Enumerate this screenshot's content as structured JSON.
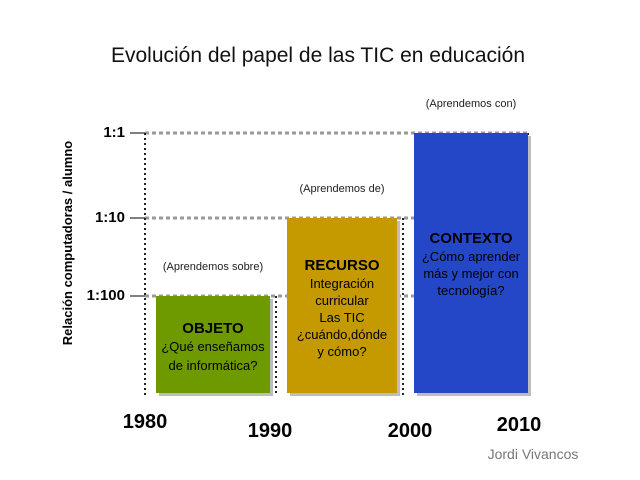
{
  "chart_data": {
    "type": "bar",
    "title": "Evolución del papel de las TIC en educación",
    "ylabel": "Relación computadoras / alumno",
    "xlabel": "",
    "y_ticks": [
      "1:100",
      "1:10",
      "1:1"
    ],
    "x_ticks": [
      "1980",
      "1990",
      "2000",
      "2010"
    ],
    "grid": "dotted",
    "bars": [
      {
        "from": "1980",
        "to": "1990",
        "level": "1:100",
        "color": "#6e9a00",
        "title": "OBJETO",
        "lines": [
          "¿Qué enseñamos",
          "de informática?"
        ],
        "note": "(Aprendemos sobre)"
      },
      {
        "from": "1990",
        "to": "2000",
        "level": "1:10",
        "color": "#c49a00",
        "title": "RECURSO",
        "lines": [
          "Integración",
          "curricular",
          "Las TIC",
          "¿cuándo,dónde",
          "y cómo?"
        ],
        "note": "(Aprendemos de)"
      },
      {
        "from": "2000",
        "to": "2010",
        "level": "1:1",
        "color": "#2447c8",
        "title": "CONTEXTO",
        "lines": [
          "¿Cómo aprender",
          "más y mejor con",
          "tecnología?"
        ],
        "note": "(Aprendemos con)"
      }
    ]
  },
  "author": "Jordi Vivancos"
}
